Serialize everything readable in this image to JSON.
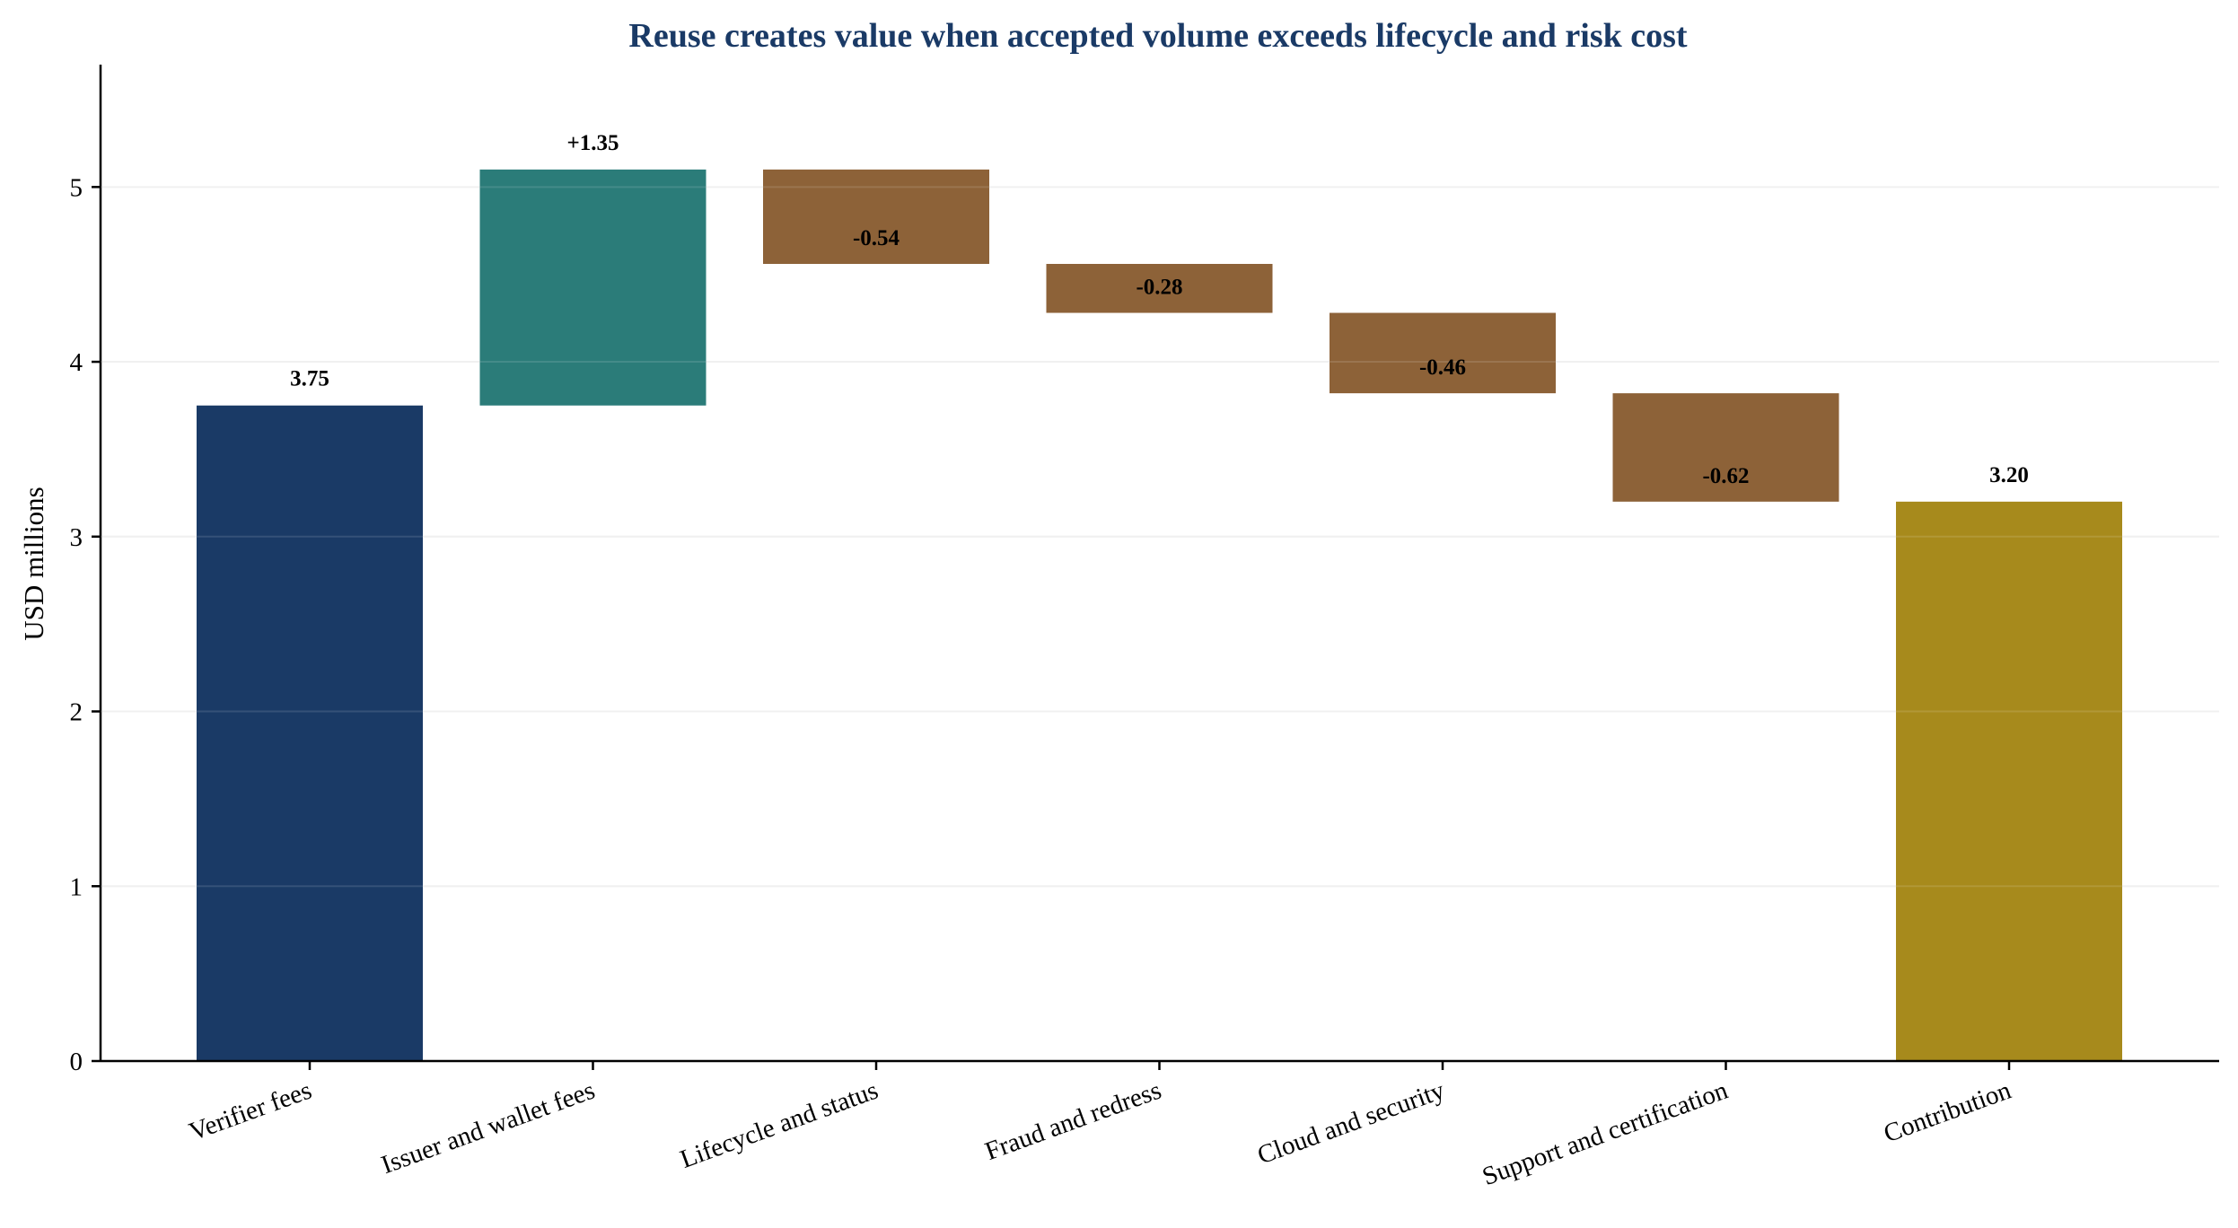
{
  "chart_data": {
    "type": "bar",
    "subtype": "waterfall",
    "title": "Reuse creates value when accepted volume exceeds lifecycle and risk cost",
    "xlabel": "",
    "ylabel": "USD millions",
    "ylim": [
      0,
      5.7
    ],
    "yticks": [
      0,
      1,
      2,
      3,
      4,
      5
    ],
    "grid": "horizontal",
    "legend": "none",
    "categories": [
      "Verifier fees",
      "Issuer and wallet fees",
      "Lifecycle and status",
      "Fraud and redress",
      "Cloud and security",
      "Support and certification",
      "Contribution"
    ],
    "steps": [
      {
        "kind": "total",
        "value": 3.75,
        "label": "3.75"
      },
      {
        "kind": "delta",
        "value": 1.35,
        "label": "+1.35"
      },
      {
        "kind": "delta",
        "value": -0.54,
        "label": "-0.54"
      },
      {
        "kind": "delta",
        "value": -0.28,
        "label": "-0.28"
      },
      {
        "kind": "delta",
        "value": -0.46,
        "label": "-0.46"
      },
      {
        "kind": "delta",
        "value": -0.62,
        "label": "-0.62"
      },
      {
        "kind": "total",
        "value": 3.2,
        "label": "3.20"
      }
    ],
    "colors": {
      "start_total": "#1a3a66",
      "increase": "#2b7c79",
      "decrease": "#8d6238",
      "end_total": "#a78a1c",
      "title": "#1a3a66",
      "grid": "#eeeeee",
      "axis": "#000000"
    }
  }
}
